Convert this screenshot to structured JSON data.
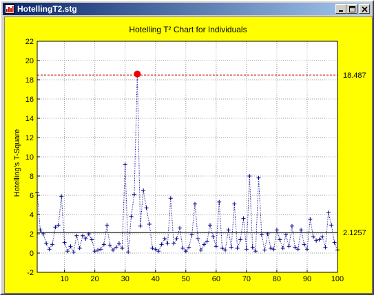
{
  "window": {
    "title": "HotellingT2.stg",
    "minimize_icon": "minimize-icon",
    "maximize_icon": "maximize-icon",
    "close_icon": "close-icon"
  },
  "colors": {
    "panel_bg": "#ffff00",
    "plot_bg": "#ffffff",
    "series": "#00008b",
    "ucl": "#cc0000",
    "center": "#000000",
    "outlier": "#ee0000"
  },
  "chart_data": {
    "type": "line",
    "title": "Hotelling T² Chart for Individuals",
    "xlabel": "",
    "ylabel": "Hotelling's T-Square",
    "xlim": [
      1,
      100
    ],
    "ylim": [
      -2,
      22
    ],
    "x_ticks": [
      10,
      20,
      30,
      40,
      50,
      60,
      70,
      80,
      90,
      100
    ],
    "y_ticks": [
      -2,
      0,
      2,
      4,
      6,
      8,
      10,
      12,
      14,
      16,
      18,
      20,
      22
    ],
    "grid": true,
    "ucl": 18.487,
    "ucl_label": "18.487",
    "center": 2.1257,
    "center_label": "2.1257",
    "outliers": [
      34
    ],
    "x": [
      1,
      2,
      3,
      4,
      5,
      6,
      7,
      8,
      9,
      10,
      11,
      12,
      13,
      14,
      15,
      16,
      17,
      18,
      19,
      20,
      21,
      22,
      23,
      24,
      25,
      26,
      27,
      28,
      29,
      30,
      31,
      32,
      33,
      34,
      35,
      36,
      37,
      38,
      39,
      40,
      41,
      42,
      43,
      44,
      45,
      46,
      47,
      48,
      49,
      50,
      51,
      52,
      53,
      54,
      55,
      56,
      57,
      58,
      59,
      60,
      61,
      62,
      63,
      64,
      65,
      66,
      67,
      68,
      69,
      70,
      71,
      72,
      73,
      74,
      75,
      76,
      77,
      78,
      79,
      80,
      81,
      82,
      83,
      84,
      85,
      86,
      87,
      88,
      89,
      90,
      91,
      92,
      93,
      94,
      95,
      96,
      97,
      98,
      99,
      100
    ],
    "values": [
      6.3,
      2.4,
      2.0,
      1.0,
      0.4,
      0.9,
      2.7,
      2.9,
      5.9,
      1.1,
      0.2,
      0.7,
      0.1,
      1.8,
      0.5,
      1.8,
      1.5,
      2.0,
      1.4,
      0.2,
      0.3,
      0.4,
      0.9,
      2.9,
      0.8,
      0.3,
      0.6,
      1.0,
      0.5,
      9.2,
      0.1,
      3.8,
      6.1,
      18.6,
      2.8,
      6.5,
      4.7,
      3.0,
      0.5,
      0.4,
      0.2,
      0.9,
      1.5,
      1.0,
      5.7,
      1.0,
      1.5,
      2.6,
      0.5,
      0.2,
      0.6,
      1.9,
      5.1,
      1.5,
      0.3,
      0.9,
      1.2,
      2.9,
      1.7,
      0.7,
      5.3,
      0.5,
      0.3,
      2.4,
      0.6,
      5.1,
      0.5,
      1.4,
      3.6,
      0.4,
      8.0,
      0.6,
      0.2,
      7.8,
      1.9,
      0.3,
      2.0,
      0.5,
      0.4,
      2.4,
      1.4,
      0.5,
      1.9,
      0.7,
      2.8,
      0.6,
      0.4,
      2.4,
      0.9,
      0.4,
      3.5,
      1.7,
      1.3,
      1.4,
      1.7,
      0.6,
      4.2,
      2.9,
      1.1,
      0.3
    ]
  }
}
